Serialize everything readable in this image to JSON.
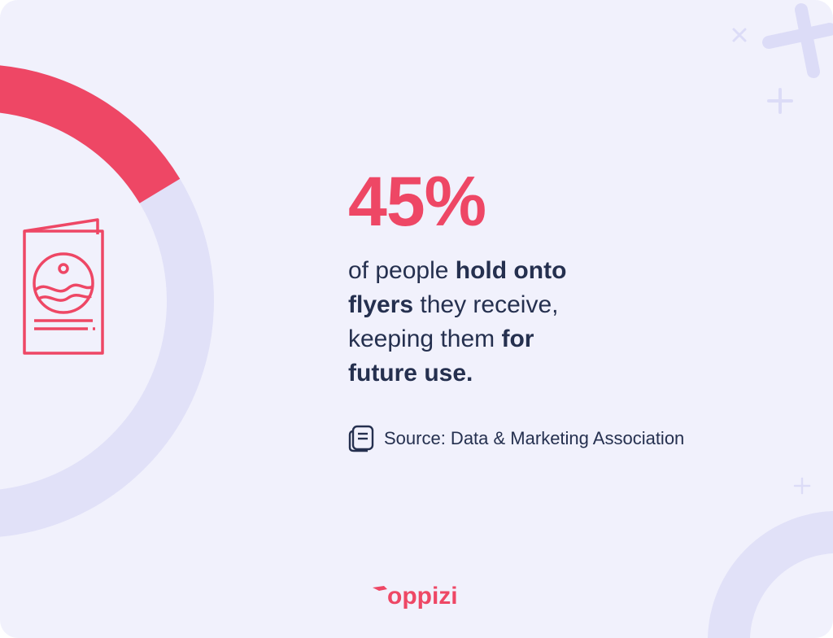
{
  "stat": {
    "value": "45%",
    "fraction": 0.45
  },
  "description": {
    "p1": "of people ",
    "b1": "hold onto",
    "b2": "flyers",
    "p2": " they receive,",
    "p3": "keeping them ",
    "b3": "for",
    "b4": "future use."
  },
  "source": {
    "text": "Source: Data & Marketing Association",
    "icon": "document-icon"
  },
  "brand": {
    "logo_text": "oppizi"
  },
  "colors": {
    "accent": "#ee4765",
    "ring_track": "#e1e1f8",
    "background": "#f1f1fc",
    "text": "#25304f"
  },
  "icons": [
    "brochure-icon",
    "plus-icon",
    "close-icon"
  ]
}
